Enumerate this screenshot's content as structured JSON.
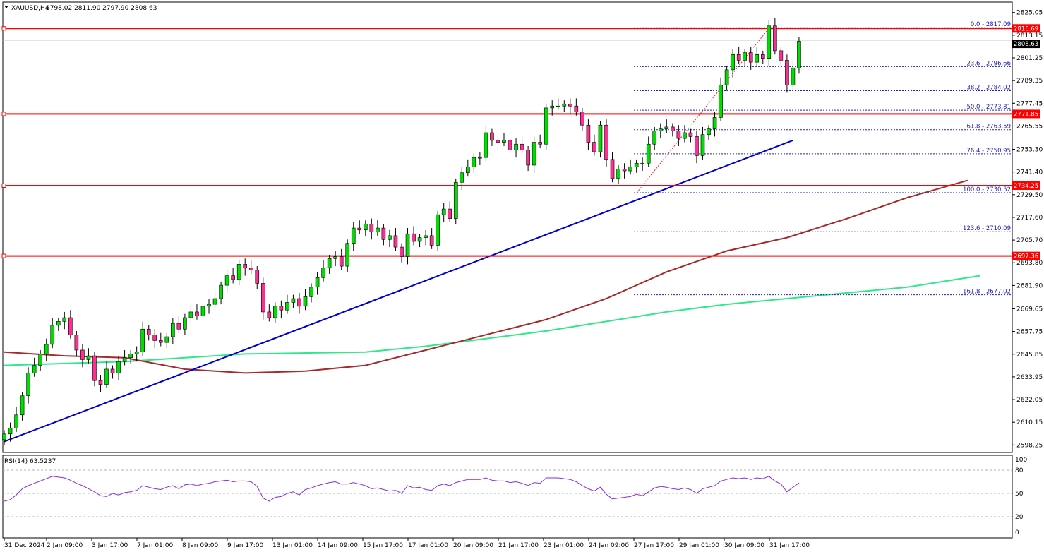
{
  "header": {
    "symbol": "XAUUSD,H4",
    "ohlc": "2798.02 2811.90 2797.90 2808.63"
  },
  "rsi_header": "RSI(14) 63.5237",
  "colors": {
    "bull": "#00dd00",
    "bear": "#ff2f92",
    "support": "#ff0000",
    "trendline": "#0000cc",
    "ma_fast": "#a52a2a",
    "ma_slow": "#2ee88a",
    "fib": "#2020c0",
    "rsi": "#8a2be2",
    "current_tag": "#000000"
  },
  "chart_data": [
    {
      "type": "candlestick",
      "title": "XAUUSD,H4",
      "ylim": [
        2594.3,
        2830.5
      ],
      "y_ticks": [
        "2825.05",
        "2813.15",
        "2801.25",
        "2789.35",
        "2777.45",
        "2765.55",
        "2753.30",
        "2741.40",
        "2729.50",
        "2717.60",
        "2705.70",
        "2693.80",
        "2681.90",
        "2669.65",
        "2657.75",
        "2645.85",
        "2633.95",
        "2622.05",
        "2610.15",
        "2598.25"
      ],
      "x_ticks": [
        "31 Dec 2024",
        "2 Jan 09:00",
        "3 Jan 17:00",
        "7 Jan 01:00",
        "8 Jan 09:00",
        "9 Jan 17:00",
        "13 Jan 01:00",
        "14 Jan 09:00",
        "15 Jan 17:00",
        "17 Jan 01:00",
        "20 Jan 09:00",
        "21 Jan 17:00",
        "23 Jan 01:00",
        "24 Jan 09:00",
        "27 Jan 17:00",
        "29 Jan 01:00",
        "30 Jan 09:00",
        "31 Jan 17:00"
      ],
      "closes": [
        2604,
        2607,
        2614,
        2624,
        2636,
        2640,
        2646,
        2651,
        2661,
        2663,
        2665,
        2656,
        2648,
        2643,
        2645,
        2632,
        2630,
        2638,
        2636,
        2642,
        2644,
        2646,
        2647,
        2659,
        2656,
        2653,
        2652,
        2655,
        2662,
        2659,
        2665,
        2668,
        2666,
        2671,
        2672,
        2675,
        2682,
        2687,
        2685,
        2693,
        2691,
        2690,
        2683,
        2668,
        2665,
        2671,
        2669,
        2673,
        2675,
        2671,
        2676,
        2681,
        2686,
        2691,
        2696,
        2697,
        2692,
        2704,
        2712,
        2711,
        2714,
        2710,
        2712,
        2706,
        2708,
        2702,
        2697,
        2709,
        2705,
        2707,
        2708,
        2703,
        2719,
        2722,
        2717,
        2736,
        2741,
        2744,
        2749,
        2749,
        2762,
        2758,
        2757,
        2758,
        2753,
        2756,
        2753,
        2745,
        2757,
        2756,
        2775,
        2776,
        2776,
        2777,
        2776,
        2773,
        2766,
        2757,
        2752,
        2766,
        2748,
        2738,
        2743,
        2742,
        2744,
        2746,
        2746,
        2756,
        2763,
        2764,
        2765,
        2763,
        2759,
        2762,
        2760,
        2750,
        2761,
        2764,
        2770,
        2787,
        2795,
        2803,
        2800,
        2804,
        2799,
        2803,
        2801,
        2818,
        2805,
        2800,
        2787,
        2796,
        2810
      ],
      "closes_note": "approximate H4 closes read from the price axis",
      "support_levels": [
        2816.69,
        2771.85,
        2734.25,
        2697.36
      ],
      "current_price": 2808.63,
      "fibonacci": [
        {
          "ratio": "0.0",
          "price": 2817.09
        },
        {
          "ratio": "23.6",
          "price": 2796.66
        },
        {
          "ratio": "38.2",
          "price": 2784.02
        },
        {
          "ratio": "50.0",
          "price": 2773.81
        },
        {
          "ratio": "61.8",
          "price": 2763.59
        },
        {
          "ratio": "76.4",
          "price": 2750.95
        },
        {
          "ratio": "100.0",
          "price": 2730.52
        },
        {
          "ratio": "123.6",
          "price": 2710.09
        },
        {
          "ratio": "161.8",
          "price": 2677.02
        }
      ],
      "trendline": [
        {
          "bar": 0,
          "price": 2600
        },
        {
          "bar": 131,
          "price": 2758
        }
      ],
      "ma_fast": [
        [
          0,
          2647
        ],
        [
          10,
          2645
        ],
        [
          20,
          2644
        ],
        [
          30,
          2638
        ],
        [
          40,
          2636
        ],
        [
          50,
          2637
        ],
        [
          60,
          2640
        ],
        [
          70,
          2648
        ],
        [
          80,
          2656
        ],
        [
          90,
          2664
        ],
        [
          100,
          2675
        ],
        [
          110,
          2689
        ],
        [
          120,
          2700
        ],
        [
          130,
          2707
        ],
        [
          140,
          2717
        ],
        [
          150,
          2728
        ],
        [
          160,
          2737
        ]
      ],
      "ma_slow": [
        [
          0,
          2640
        ],
        [
          20,
          2642
        ],
        [
          40,
          2646
        ],
        [
          60,
          2647
        ],
        [
          70,
          2650
        ],
        [
          80,
          2654
        ],
        [
          90,
          2658
        ],
        [
          100,
          2663
        ],
        [
          110,
          2668
        ],
        [
          120,
          2672
        ],
        [
          130,
          2675
        ],
        [
          140,
          2678
        ],
        [
          150,
          2681
        ],
        [
          162,
          2687
        ]
      ]
    },
    {
      "type": "line",
      "title": "RSI(14) 63.5237",
      "ylim": [
        0,
        100
      ],
      "y_ticks": [
        "100",
        "80",
        "50",
        "20",
        "0"
      ],
      "levels": [
        80,
        50,
        20
      ],
      "values": [
        40,
        42,
        48,
        56,
        60,
        63,
        66,
        69,
        72,
        71,
        70,
        67,
        63,
        60,
        56,
        52,
        47,
        46,
        50,
        48,
        51,
        52,
        54,
        60,
        58,
        56,
        55,
        58,
        60,
        56,
        61,
        62,
        60,
        62,
        63,
        65,
        66,
        67,
        65,
        66,
        66,
        65,
        59,
        44,
        40,
        45,
        46,
        50,
        52,
        48,
        55,
        57,
        60,
        62,
        64,
        65,
        62,
        62,
        64,
        62,
        60,
        56,
        57,
        55,
        53,
        54,
        50,
        60,
        57,
        58,
        55,
        54,
        60,
        62,
        60,
        64,
        66,
        68,
        68,
        68,
        70,
        67,
        66,
        66,
        64,
        65,
        63,
        60,
        64,
        63,
        70,
        70,
        70,
        69,
        68,
        65,
        60,
        56,
        53,
        58,
        49,
        43,
        44,
        45,
        46,
        49,
        47,
        52,
        57,
        59,
        58,
        56,
        55,
        57,
        55,
        50,
        56,
        58,
        60,
        66,
        68,
        70,
        69,
        70,
        68,
        70,
        69,
        72,
        66,
        62,
        52,
        58,
        63.5
      ]
    }
  ]
}
